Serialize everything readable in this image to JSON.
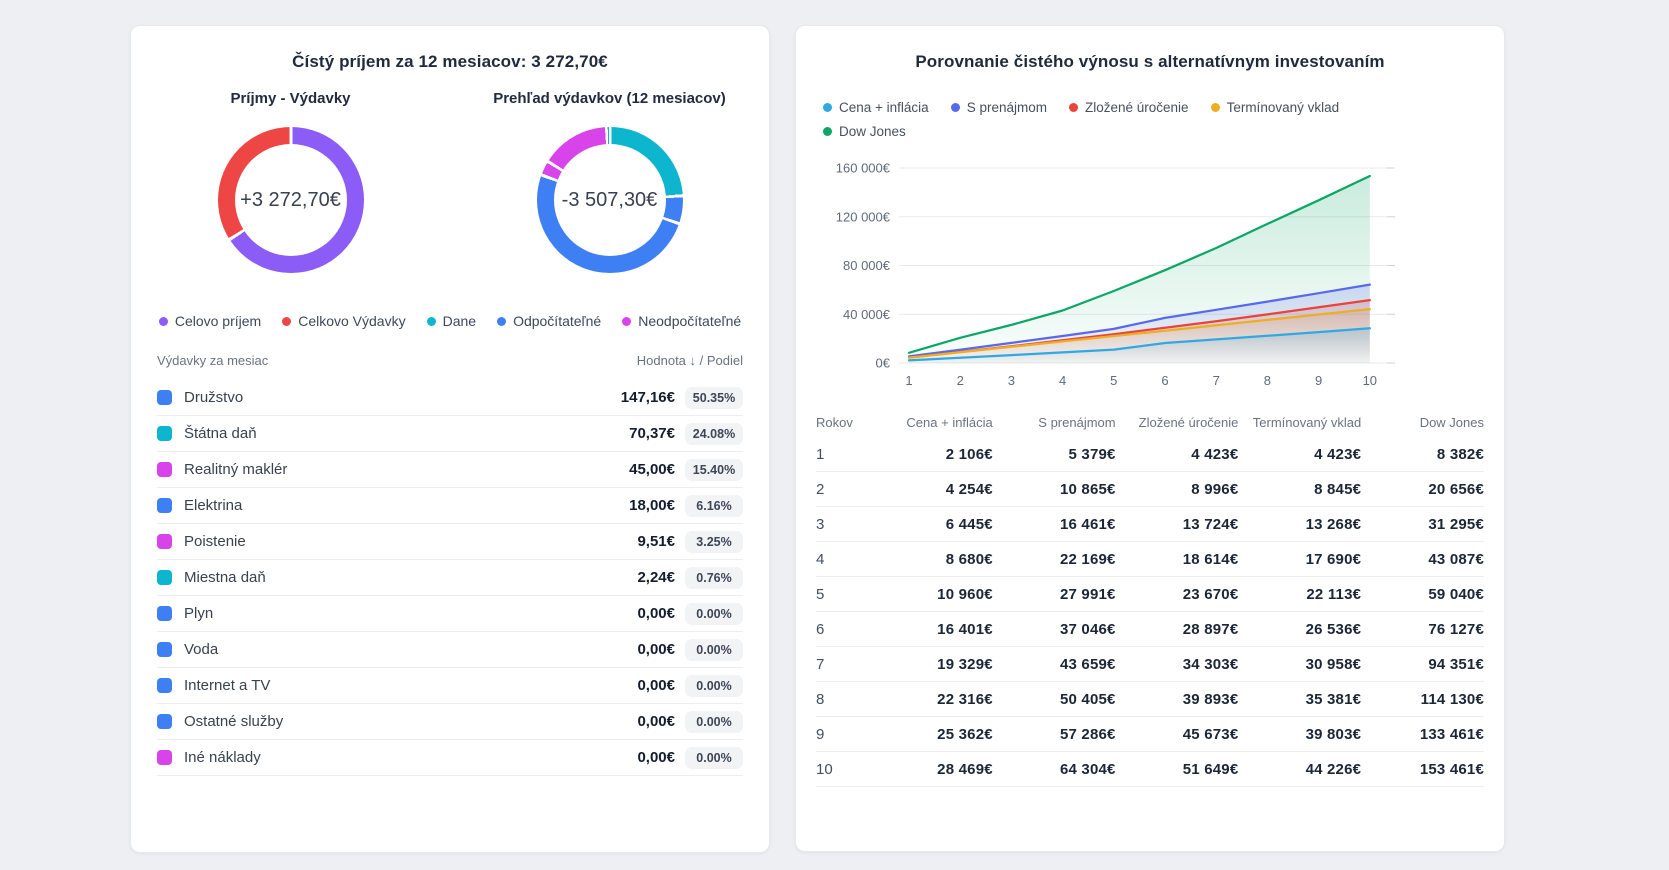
{
  "colors": {
    "purple": "#8b5cf6",
    "red": "#ee4545",
    "cyan": "#0db5ce",
    "blue": "#3e80f4",
    "magenta": "#d944ea",
    "line_cena": "#2fa8e3",
    "line_prenajom": "#5a68ea",
    "line_zlozene": "#e9443a",
    "line_terminovany": "#eeae21",
    "line_dowjones": "#0ca766"
  },
  "left_card": {
    "title": "Čístý príjem za 12 mesiacov: 3 272,70€",
    "legend": [
      {
        "label": "Celovo príjem",
        "color": "#8b5cf6"
      },
      {
        "label": "Celkovo Výdavky",
        "color": "#ee4545"
      },
      {
        "label": "Dane",
        "color": "#0db5ce"
      },
      {
        "label": "Odpočítateľné",
        "color": "#3e80f4"
      },
      {
        "label": "Neodpočítateľné",
        "color": "#d944ea"
      }
    ],
    "table": {
      "header_left": "Výdavky za mesiac",
      "header_right": "Hodnota ↓ / Podiel",
      "rows": [
        {
          "label": "Družstvo",
          "color": "#3e80f4",
          "value": "147,16€",
          "share": "50.35%"
        },
        {
          "label": "Štátna daň",
          "color": "#0db5ce",
          "value": "70,37€",
          "share": "24.08%"
        },
        {
          "label": "Realitný maklér",
          "color": "#d944ea",
          "value": "45,00€",
          "share": "15.40%"
        },
        {
          "label": "Elektrina",
          "color": "#3e80f4",
          "value": "18,00€",
          "share": "6.16%"
        },
        {
          "label": "Poistenie",
          "color": "#d944ea",
          "value": "9,51€",
          "share": "3.25%"
        },
        {
          "label": "Miestna daň",
          "color": "#0db5ce",
          "value": "2,24€",
          "share": "0.76%"
        },
        {
          "label": "Plyn",
          "color": "#3e80f4",
          "value": "0,00€",
          "share": "0.00%"
        },
        {
          "label": "Voda",
          "color": "#3e80f4",
          "value": "0,00€",
          "share": "0.00%"
        },
        {
          "label": "Internet a TV",
          "color": "#3e80f4",
          "value": "0,00€",
          "share": "0.00%"
        },
        {
          "label": "Ostatné služby",
          "color": "#3e80f4",
          "value": "0,00€",
          "share": "0.00%"
        },
        {
          "label": "Iné náklady",
          "color": "#d944ea",
          "value": "0,00€",
          "share": "0.00%"
        }
      ]
    }
  },
  "right_card": {
    "title": "Porovnanie čistého výnosu s alternatívnym investovaním",
    "table": {
      "col_headers": [
        "Rokov",
        "Cena + inflácia",
        "S prenájmom",
        "Zložené úročenie",
        "Termínovaný vklad",
        "Dow Jones"
      ]
    }
  },
  "chart_data": [
    {
      "type": "pie",
      "title": "Príjmy - Výdavky",
      "center_label": "+3 272,70€",
      "slices": [
        {
          "label": "Celovo príjem",
          "value": 65.91,
          "color": "#8b5cf6"
        },
        {
          "label": "Celkovo Výdavky",
          "value": 34.09,
          "color": "#ee4545"
        }
      ]
    },
    {
      "type": "pie",
      "title": "Prehľad výdavkov (12 mesiacov)",
      "center_label": "-3 507,30€",
      "slices": [
        {
          "label": "Štátna daň",
          "value": 24.08,
          "color": "#0db5ce"
        },
        {
          "label": "Elektrina",
          "value": 6.16,
          "color": "#3e80f4"
        },
        {
          "label": "Družstvo",
          "value": 50.35,
          "color": "#3e80f4"
        },
        {
          "label": "Poistenie",
          "value": 3.25,
          "color": "#d944ea"
        },
        {
          "label": "Realitný maklér",
          "value": 15.4,
          "color": "#d944ea"
        },
        {
          "label": "Miestna daň",
          "value": 0.76,
          "color": "#0db5ce"
        }
      ]
    },
    {
      "type": "line",
      "title": "Porovnanie čistého výnosu s alternatívnym investovaním",
      "xlabel": "Rokov",
      "x": [
        1,
        2,
        3,
        4,
        5,
        6,
        7,
        8,
        9,
        10
      ],
      "ylim": [
        0,
        160000
      ],
      "yticks": [
        0,
        40000,
        80000,
        120000,
        160000
      ],
      "ytick_labels": [
        "0€",
        "40 000€",
        "80 000€",
        "120 000€",
        "160 000€"
      ],
      "grid": true,
      "legend_position": "top-left",
      "series": [
        {
          "name": "Cena + inflácia",
          "color": "#2fa8e3",
          "values": [
            2106,
            4254,
            6445,
            8680,
            10960,
            16401,
            19329,
            22316,
            25362,
            28469
          ]
        },
        {
          "name": "S prenájmom",
          "color": "#5a68ea",
          "values": [
            5379,
            10865,
            16461,
            22169,
            27991,
            37046,
            43659,
            50405,
            57286,
            64304
          ]
        },
        {
          "name": "Zložené úročenie",
          "color": "#e9443a",
          "values": [
            4423,
            8996,
            13724,
            18614,
            23670,
            28897,
            34303,
            39893,
            45673,
            51649
          ]
        },
        {
          "name": "Termínovaný vklad",
          "color": "#eeae21",
          "values": [
            4423,
            8845,
            13268,
            17690,
            22113,
            26536,
            30958,
            35381,
            39803,
            44226
          ]
        },
        {
          "name": "Dow Jones",
          "color": "#0ca766",
          "values": [
            8382,
            20656,
            31295,
            43087,
            59040,
            76127,
            94351,
            114130,
            133461,
            153461
          ]
        }
      ]
    }
  ]
}
